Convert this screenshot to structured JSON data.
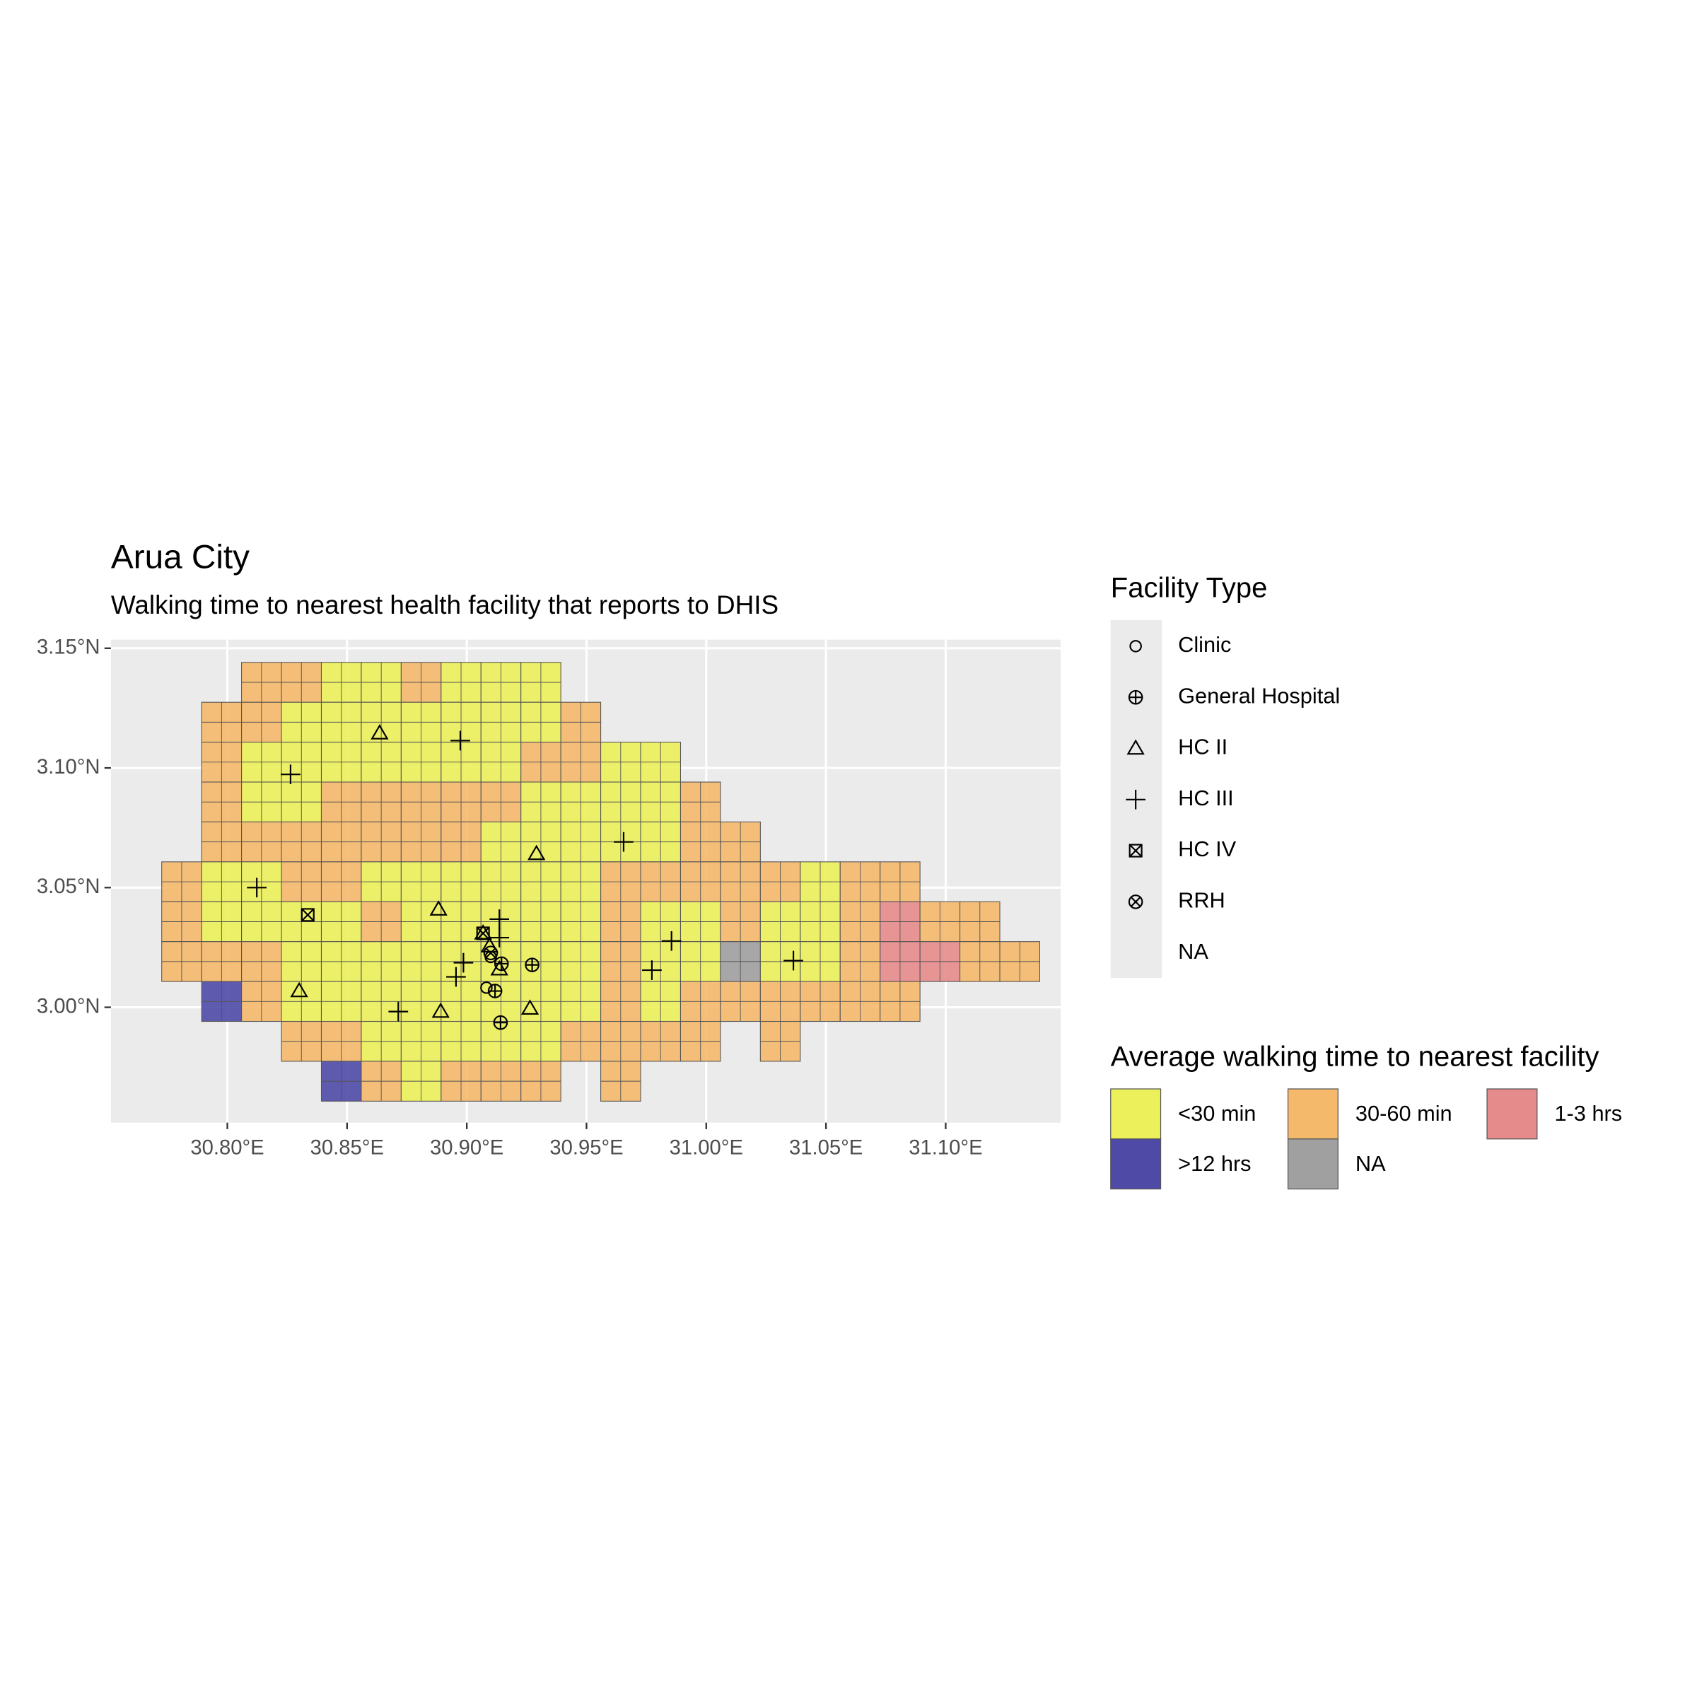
{
  "title": "Arua City",
  "subtitle": "Walking time to nearest health facility that reports to DHIS",
  "xlim": [
    30.7514,
    31.148
  ],
  "ylim": [
    2.9518,
    3.1536
  ],
  "xticks": [
    {
      "value": 30.8,
      "label": "30.80°E"
    },
    {
      "value": 30.85,
      "label": "30.85°E"
    },
    {
      "value": 30.9,
      "label": "30.90°E"
    },
    {
      "value": 30.95,
      "label": "30.95°E"
    },
    {
      "value": 31.0,
      "label": "31.00°E"
    },
    {
      "value": 31.05,
      "label": "31.05°E"
    },
    {
      "value": 31.1,
      "label": "31.10°E"
    }
  ],
  "yticks": [
    {
      "value": 3.0,
      "label": "3.00°N"
    },
    {
      "value": 3.05,
      "label": "3.05°N"
    },
    {
      "value": 3.1,
      "label": "3.10°N"
    },
    {
      "value": 3.15,
      "label": "3.15°N"
    }
  ],
  "fill_legend": {
    "title": "Average walking time to nearest facility",
    "items": [
      {
        "label": "<30 min",
        "color": "#ecf05a"
      },
      {
        "label": ">12 hrs",
        "color": "#4f4aa6"
      },
      {
        "label": "30-60 min",
        "color": "#f5b96b"
      },
      {
        "label": "NA",
        "color": "#a0a0a0"
      },
      {
        "label": "1-3 hrs",
        "color": "#e58b8b"
      }
    ]
  },
  "cells": {
    "lon0": 30.7726,
    "lat0": 3.1441,
    "size": 0.016667,
    "rows": [
      [
        null,
        null,
        2,
        2,
        0,
        0,
        2,
        0,
        0,
        0
      ],
      [
        null,
        2,
        2,
        0,
        0,
        0,
        0,
        0,
        0,
        0,
        2
      ],
      [
        null,
        2,
        0,
        0,
        0,
        0,
        0,
        0,
        0,
        2,
        2,
        0,
        0
      ],
      [
        null,
        2,
        0,
        0,
        2,
        2,
        2,
        2,
        2,
        0,
        0,
        0,
        0,
        2
      ],
      [
        null,
        2,
        2,
        2,
        2,
        2,
        2,
        2,
        0,
        0,
        0,
        0,
        0,
        2,
        2
      ],
      [
        2,
        0,
        0,
        2,
        2,
        0,
        0,
        0,
        0,
        0,
        0,
        2,
        2,
        2,
        2,
        2,
        0,
        2,
        2
      ],
      [
        2,
        0,
        0,
        0,
        0,
        2,
        0,
        0,
        0,
        0,
        0,
        2,
        0,
        0,
        2,
        0,
        0,
        2,
        4,
        2,
        2
      ],
      [
        2,
        2,
        2,
        0,
        0,
        0,
        0,
        0,
        0,
        0,
        0,
        2,
        0,
        0,
        3,
        0,
        0,
        2,
        4,
        4,
        2,
        2
      ],
      [
        null,
        1,
        2,
        0,
        0,
        0,
        0,
        0,
        0,
        0,
        0,
        2,
        0,
        2,
        2,
        2,
        2,
        2,
        2
      ],
      [
        null,
        null,
        null,
        2,
        2,
        0,
        0,
        0,
        0,
        0,
        2,
        2,
        2,
        2,
        null,
        2
      ],
      [
        null,
        null,
        null,
        null,
        1,
        2,
        0,
        2,
        2,
        2,
        null,
        2
      ]
    ]
  },
  "facility_legend": {
    "title": "Facility Type",
    "items": [
      {
        "label": "Clinic",
        "shape": "circle"
      },
      {
        "label": "General Hospital",
        "shape": "circle-plus"
      },
      {
        "label": "HC II",
        "shape": "triangle"
      },
      {
        "label": "HC III",
        "shape": "plus"
      },
      {
        "label": "HC IV",
        "shape": "square-x"
      },
      {
        "label": "RRH",
        "shape": "circle-x"
      },
      {
        "label": "NA",
        "shape": null
      }
    ]
  },
  "facilities": [
    {
      "type": 2,
      "lon": 30.8636,
      "lat": 3.1145
    },
    {
      "type": 2,
      "lon": 30.9291,
      "lat": 3.0641
    },
    {
      "type": 2,
      "lon": 30.8882,
      "lat": 3.0409
    },
    {
      "type": 2,
      "lon": 30.83,
      "lat": 3.0068
    },
    {
      "type": 2,
      "lon": 30.8891,
      "lat": 2.9982
    },
    {
      "type": 2,
      "lon": 30.9264,
      "lat": 2.9995
    },
    {
      "type": 2,
      "lon": 30.9068,
      "lat": 3.0309
    },
    {
      "type": 2,
      "lon": 30.9136,
      "lat": 3.0159
    },
    {
      "type": 2,
      "lon": 30.9095,
      "lat": 3.0255
    },
    {
      "type": 3,
      "lon": 30.8973,
      "lat": 3.1114
    },
    {
      "type": 3,
      "lon": 30.8264,
      "lat": 3.0973
    },
    {
      "type": 3,
      "lon": 30.9655,
      "lat": 3.0691
    },
    {
      "type": 3,
      "lon": 30.8123,
      "lat": 3.05
    },
    {
      "type": 3,
      "lon": 30.9136,
      "lat": 3.0368
    },
    {
      "type": 3,
      "lon": 30.9855,
      "lat": 3.0277
    },
    {
      "type": 3,
      "lon": 30.9773,
      "lat": 3.0155
    },
    {
      "type": 3,
      "lon": 31.0364,
      "lat": 3.0195
    },
    {
      "type": 3,
      "lon": 30.8986,
      "lat": 3.0186
    },
    {
      "type": 3,
      "lon": 30.8955,
      "lat": 3.0127
    },
    {
      "type": 3,
      "lon": 30.8714,
      "lat": 2.9982
    },
    {
      "type": 3,
      "lon": 30.9136,
      "lat": 3.0291
    },
    {
      "type": 1,
      "lon": 30.9273,
      "lat": 3.0177
    },
    {
      "type": 1,
      "lon": 30.9141,
      "lat": 2.9936
    },
    {
      "type": 1,
      "lon": 30.9145,
      "lat": 3.0182
    },
    {
      "type": 0,
      "lon": 30.9082,
      "lat": 3.0082
    },
    {
      "type": 0,
      "lon": 30.91,
      "lat": 3.021
    },
    {
      "type": 4,
      "lon": 30.8336,
      "lat": 3.0386
    },
    {
      "type": 4,
      "lon": 30.9068,
      "lat": 3.0309
    },
    {
      "type": 5,
      "lon": 30.91,
      "lat": 3.0227
    },
    {
      "type": 1,
      "lon": 30.9118,
      "lat": 3.0068
    }
  ]
}
